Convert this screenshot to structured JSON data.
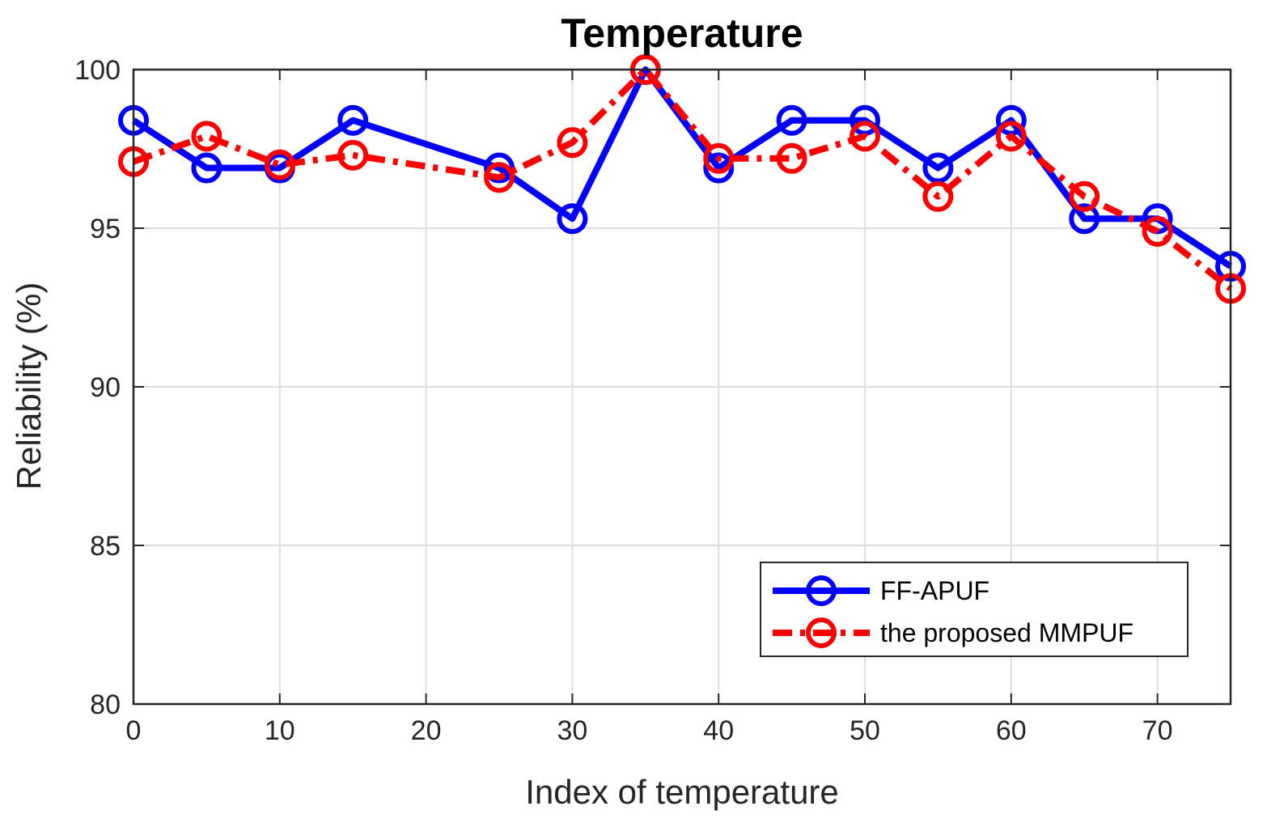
{
  "chart_data": {
    "type": "line",
    "title": "Temperature",
    "xlabel": "Index of temperature",
    "ylabel": "Reliability (%)",
    "xlim": [
      0,
      75
    ],
    "ylim": [
      80,
      100
    ],
    "xticks": [
      0,
      10,
      20,
      30,
      40,
      50,
      60,
      70
    ],
    "yticks": [
      80,
      85,
      90,
      95,
      100
    ],
    "grid": true,
    "legend_position": "bottom-right",
    "x": [
      0,
      5,
      10,
      15,
      25,
      30,
      35,
      40,
      45,
      50,
      55,
      60,
      65,
      70,
      75
    ],
    "series": [
      {
        "name": "FF-APUF",
        "color": "#0000ff",
        "line_style": "solid",
        "marker": "circle",
        "values": [
          98.4,
          96.9,
          96.9,
          98.4,
          96.9,
          95.3,
          100,
          96.9,
          98.4,
          98.4,
          96.9,
          98.4,
          95.3,
          95.3,
          93.8
        ]
      },
      {
        "name": "the proposed MMPUF",
        "color": "#ff0000",
        "line_style": "dash-dot",
        "marker": "circle",
        "values": [
          97.1,
          97.9,
          97.0,
          97.3,
          96.6,
          97.7,
          100,
          97.2,
          97.2,
          97.9,
          96.0,
          97.9,
          96.0,
          94.9,
          93.1
        ]
      }
    ]
  }
}
